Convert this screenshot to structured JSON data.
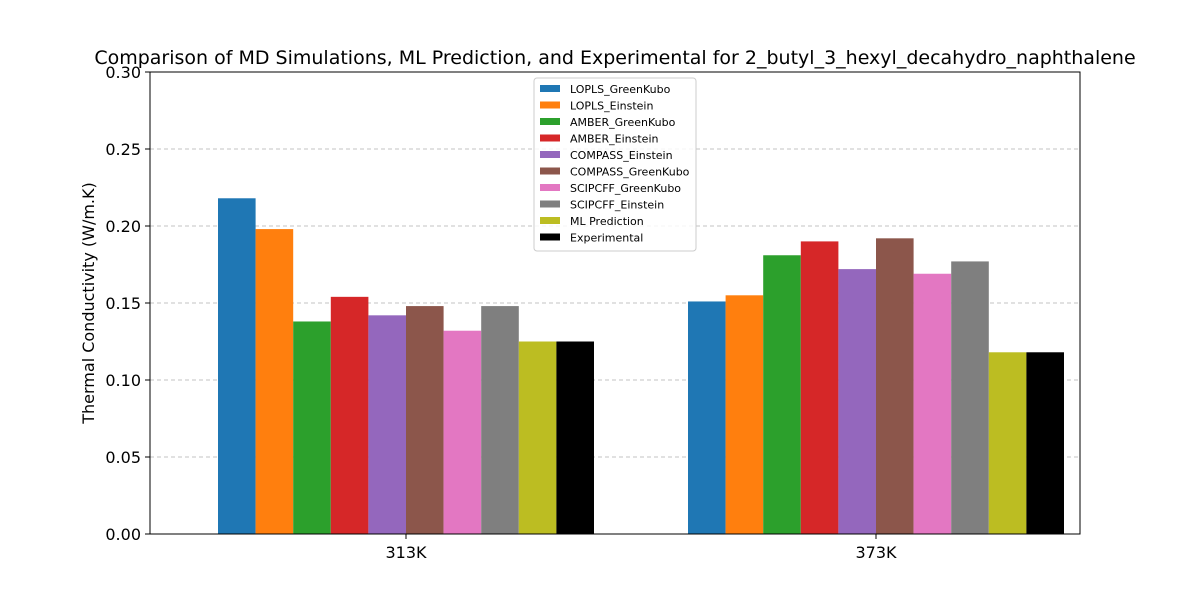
{
  "chart_data": {
    "type": "bar",
    "title": "Comparison of MD Simulations, ML Prediction, and Experimental for 2_butyl_3_hexyl_decahydro_naphthalene",
    "xlabel": "",
    "ylabel": "Thermal Conductivity (W/m.K)",
    "ylim": [
      0,
      0.3
    ],
    "yticks": [
      "0.00",
      "0.05",
      "0.10",
      "0.15",
      "0.20",
      "0.25",
      "0.30"
    ],
    "grid": "y-dashed",
    "legend_position": "top-center",
    "categories": [
      "313K",
      "373K"
    ],
    "series": [
      {
        "name": "LOPLS_GreenKubo",
        "color": "#1f77b4",
        "values": [
          0.218,
          0.151
        ]
      },
      {
        "name": "LOPLS_Einstein",
        "color": "#ff7f0e",
        "values": [
          0.198,
          0.155
        ]
      },
      {
        "name": "AMBER_GreenKubo",
        "color": "#2ca02c",
        "values": [
          0.138,
          0.181
        ]
      },
      {
        "name": "AMBER_Einstein",
        "color": "#d62728",
        "values": [
          0.154,
          0.19
        ]
      },
      {
        "name": "COMPASS_Einstein",
        "color": "#9467bd",
        "values": [
          0.142,
          0.172
        ]
      },
      {
        "name": "COMPASS_GreenKubo",
        "color": "#8c564b",
        "values": [
          0.148,
          0.192
        ]
      },
      {
        "name": "SCIPCFF_GreenKubo",
        "color": "#e377c2",
        "values": [
          0.132,
          0.169
        ]
      },
      {
        "name": "SCIPCFF_Einstein",
        "color": "#7f7f7f",
        "values": [
          0.148,
          0.177
        ]
      },
      {
        "name": "ML Prediction",
        "color": "#bcbd22",
        "values": [
          0.125,
          0.118
        ]
      },
      {
        "name": "Experimental",
        "color": "#000000",
        "values": [
          0.125,
          0.118
        ]
      }
    ]
  }
}
